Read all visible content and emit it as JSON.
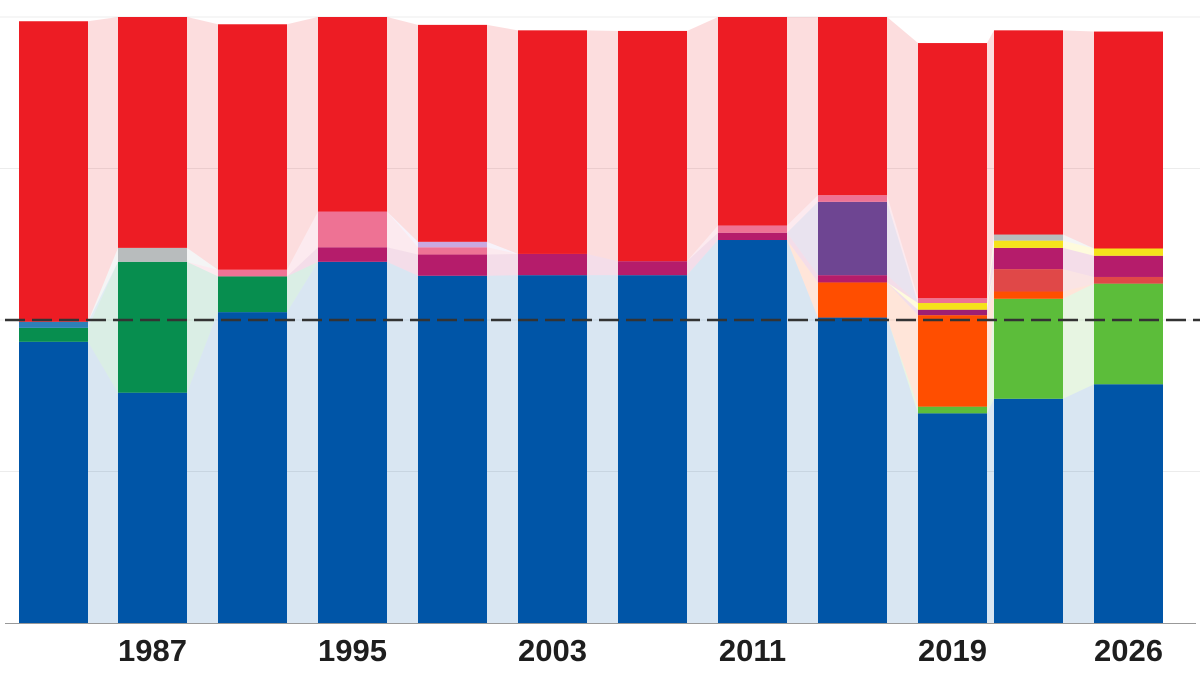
{
  "chart_data": {
    "type": "bar",
    "stacking": "stacked-100",
    "title": "",
    "xlabel": "",
    "ylabel": "",
    "ylim": [
      0,
      100
    ],
    "threshold": 50,
    "grid": true,
    "legend": "none",
    "tick_labels": [
      "1987",
      "1995",
      "2003",
      "2011",
      "2019",
      "2026"
    ],
    "categories": [
      "",
      "1987",
      "",
      "1995",
      "",
      "2003",
      "",
      "2011",
      "",
      "2019",
      "",
      "2026"
    ],
    "series": [
      {
        "color": "#0055a7",
        "values": [
          46.4,
          38.0,
          51.3,
          59.6,
          57.3,
          57.4,
          57.4,
          63.2,
          50.4,
          34.6,
          37.0,
          39.4
        ]
      },
      {
        "color": "#5cbd3a",
        "values": [
          0,
          0,
          0,
          0,
          0,
          0,
          0,
          0,
          0,
          1.1,
          16.5,
          16.6
        ]
      },
      {
        "color": "#ff4e00",
        "values": [
          0,
          0,
          0,
          0,
          0,
          0,
          0,
          0,
          5.8,
          15.1,
          1.2,
          0
        ]
      },
      {
        "color": "#e04848",
        "values": [
          0,
          0,
          0,
          0,
          0,
          0,
          0,
          0,
          0,
          0,
          3.7,
          1.1
        ]
      },
      {
        "color": "#078e4f",
        "values": [
          2.3,
          21.6,
          5.9,
          0,
          0,
          0,
          0,
          0,
          0,
          0,
          0,
          0
        ]
      },
      {
        "color": "#2e7fb8",
        "values": [
          1.0,
          0,
          0,
          0,
          0,
          0,
          0,
          0,
          0,
          0,
          0,
          0
        ]
      },
      {
        "color": "#9e1f72",
        "values": [
          0,
          0,
          0,
          0,
          0,
          0,
          0,
          0,
          0,
          0.9,
          0,
          0
        ]
      },
      {
        "color": "#f5e31a",
        "values": [
          0,
          0,
          0,
          0,
          0,
          0,
          0,
          0,
          0,
          1.1,
          0,
          0
        ]
      },
      {
        "color": "#b51c6b",
        "values": [
          0,
          0,
          0,
          2.4,
          3.5,
          3.5,
          2.3,
          1.2,
          1.2,
          0,
          3.5,
          3.5
        ]
      },
      {
        "color": "#6e4592",
        "values": [
          0,
          0,
          0,
          0,
          0,
          0,
          0,
          0,
          12.1,
          0,
          0,
          0
        ]
      },
      {
        "color": "#ee7294",
        "values": [
          0,
          0,
          1.1,
          5.9,
          1.2,
          0,
          0,
          1.2,
          1.1,
          0.8,
          0,
          0
        ]
      },
      {
        "color": "#c9a9e0",
        "values": [
          0,
          0,
          0,
          0,
          0.9,
          0,
          0,
          0,
          0,
          0,
          0,
          0
        ]
      },
      {
        "color": "#f5e31a",
        "values": [
          0,
          0,
          0,
          0,
          0,
          0,
          0,
          0,
          0,
          0,
          1.2,
          1.2
        ]
      },
      {
        "color": "#b8bcbd",
        "values": [
          0,
          2.3,
          0,
          0,
          0,
          0,
          0,
          0,
          0,
          0,
          1.0,
          0
        ]
      },
      {
        "color": "#ed1c24",
        "values": [
          49.6,
          38.1,
          40.5,
          32.1,
          35.8,
          36.9,
          38.0,
          34.4,
          29.4,
          42.1,
          33.7,
          35.8
        ]
      }
    ],
    "threshold_line_color": "#333333",
    "axis_color": "#999999"
  }
}
